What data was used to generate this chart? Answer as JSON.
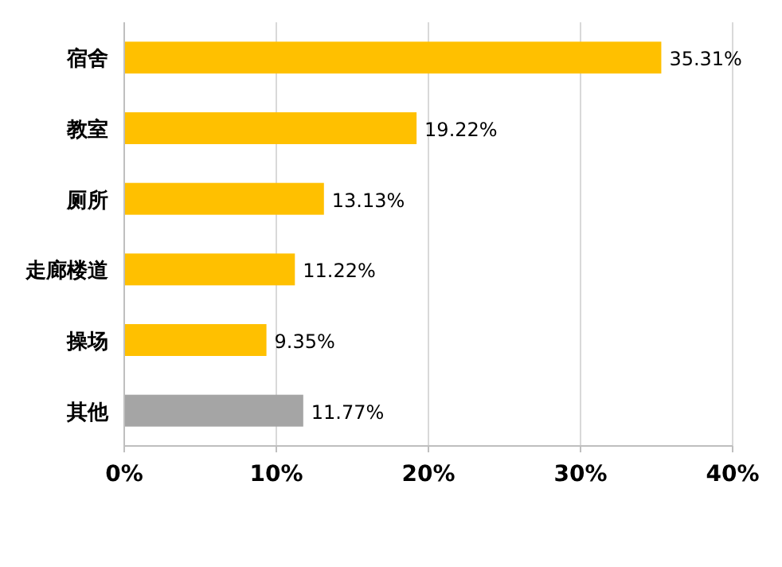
{
  "chart_data": {
    "type": "bar",
    "orientation": "horizontal",
    "categories": [
      "宿舍",
      "教室",
      "厕所",
      "走廊楼道",
      "操场",
      "其他"
    ],
    "values": [
      35.31,
      19.22,
      13.13,
      11.22,
      9.35,
      11.77
    ],
    "colors": [
      "#ffc000",
      "#ffc000",
      "#ffc000",
      "#ffc000",
      "#ffc000",
      "#a5a5a5"
    ],
    "value_labels": [
      "35.31%",
      "19.22%",
      "13.13%",
      "11.22%",
      "9.35%",
      "11.77%"
    ],
    "xlim": [
      0,
      40
    ],
    "xticks": [
      {
        "value": 0,
        "label": "0%"
      },
      {
        "value": 10,
        "label": "10%"
      },
      {
        "value": 20,
        "label": "20%"
      },
      {
        "value": 30,
        "label": "30%"
      },
      {
        "value": 40,
        "label": "40%"
      }
    ],
    "grid": "x"
  }
}
